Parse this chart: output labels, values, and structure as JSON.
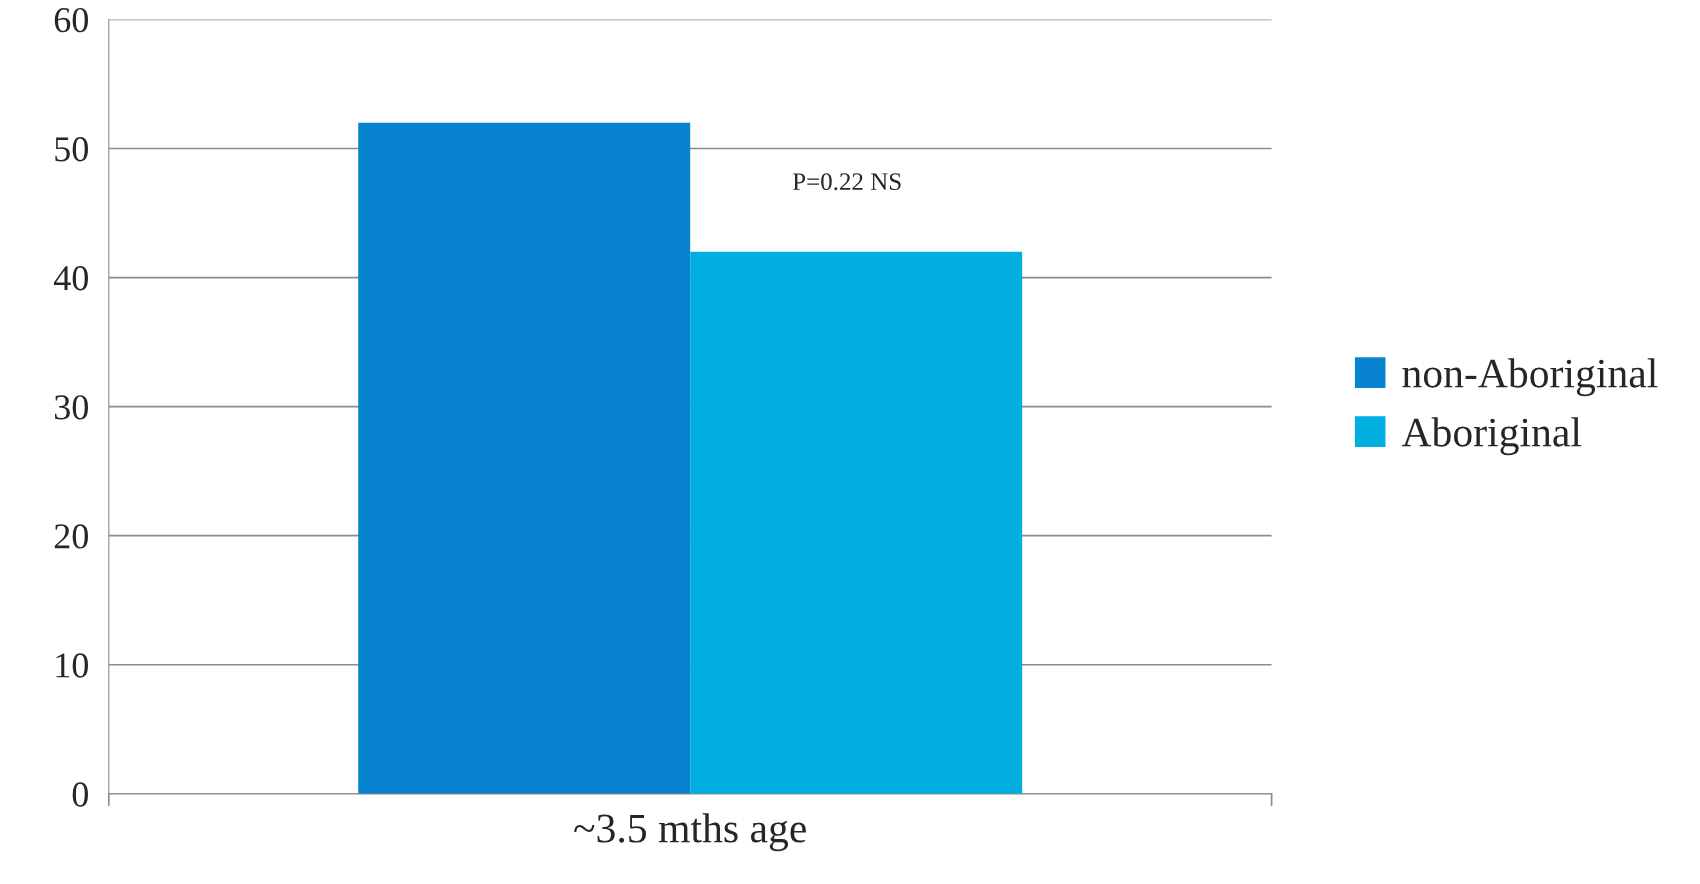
{
  "chart_data": {
    "type": "bar",
    "categories": [
      "~3.5 mths age"
    ],
    "series": [
      {
        "name": "non-Aboriginal",
        "color": "#0783d0",
        "values": [
          52
        ]
      },
      {
        "name": "Aboriginal",
        "color": "#00aee0",
        "values": [
          42
        ]
      }
    ],
    "ylim": [
      0,
      60
    ],
    "yticks": [
      0,
      10,
      20,
      30,
      40,
      50,
      60
    ],
    "grid": "y",
    "legend": "right",
    "annotations": [
      "P=0.22 NS"
    ]
  }
}
